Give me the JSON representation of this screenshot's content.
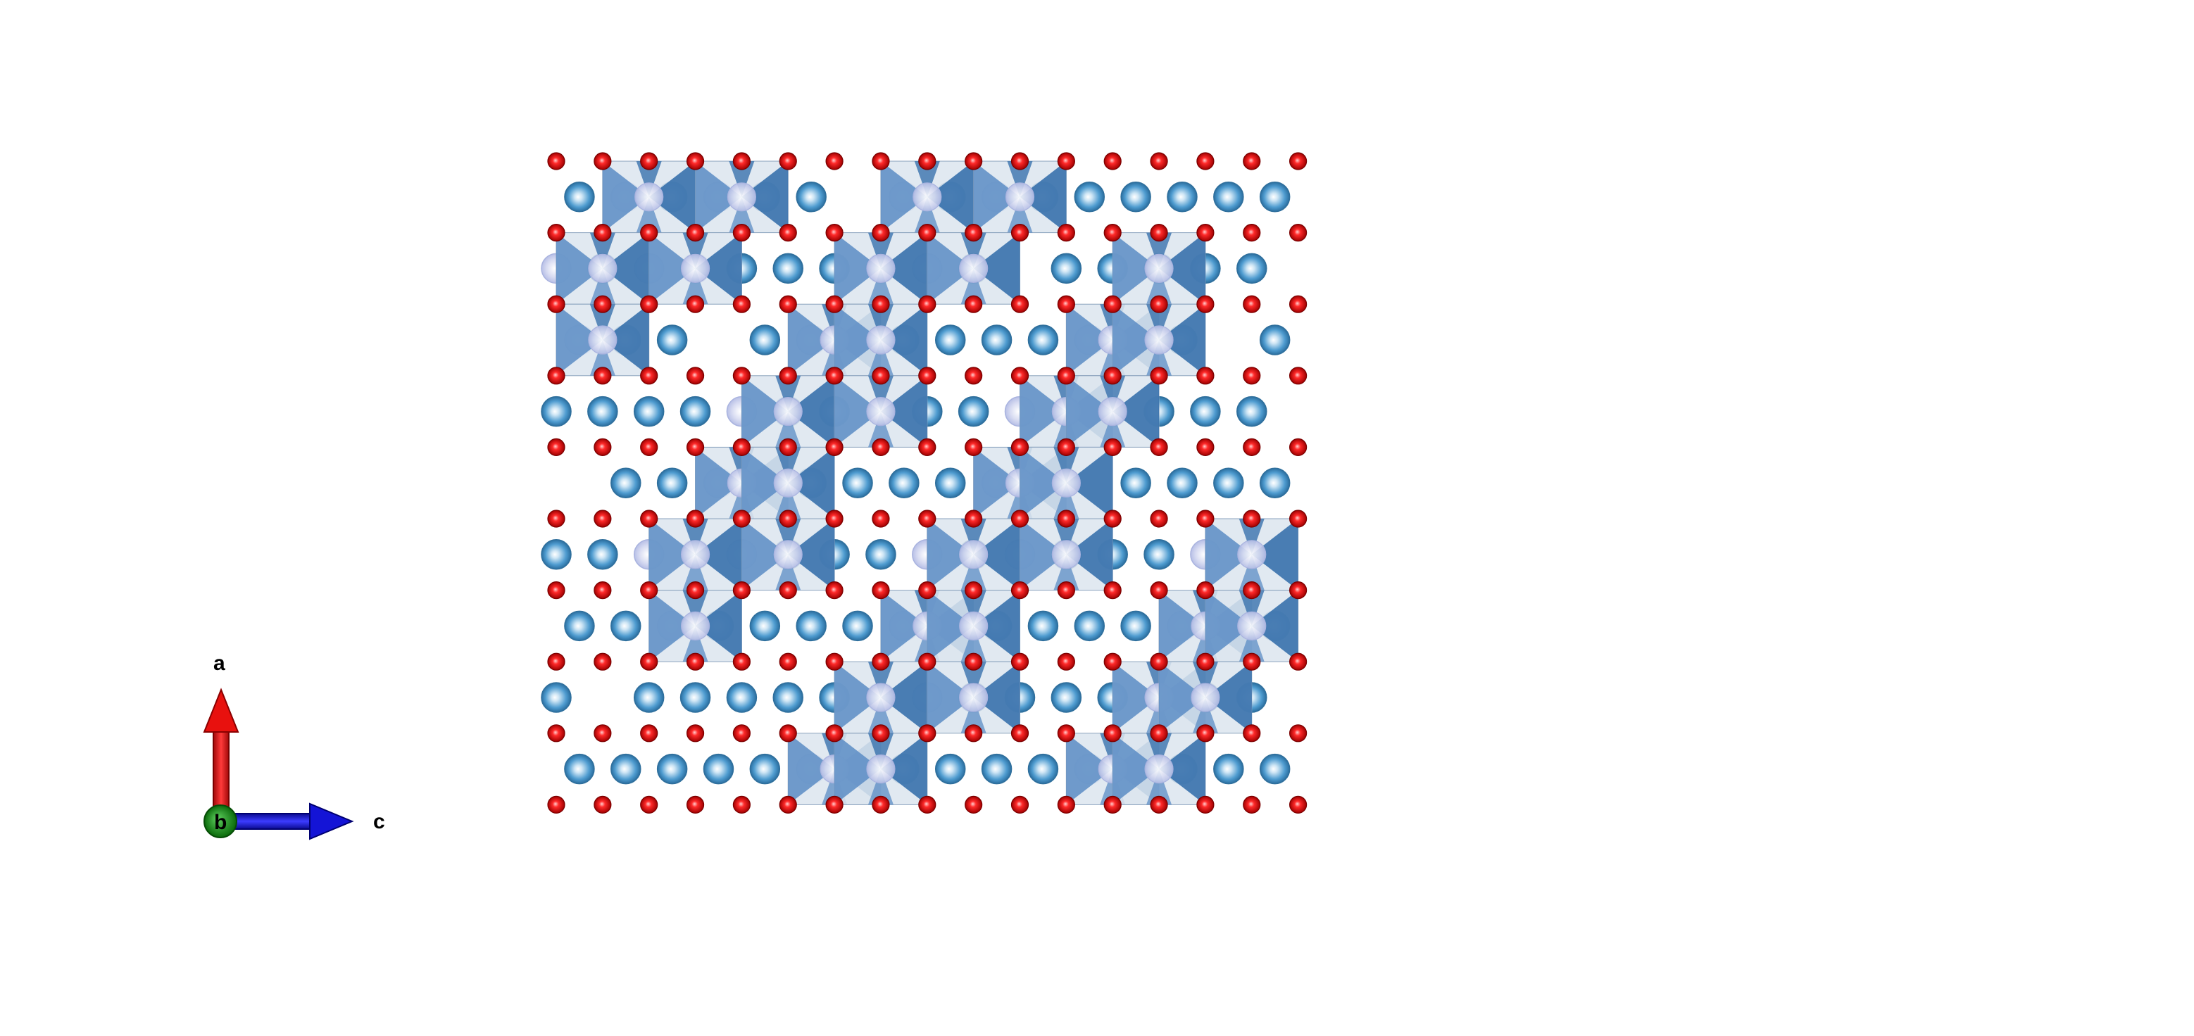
{
  "axes": {
    "a_label": "a",
    "b_label": "b",
    "c_label": "c",
    "a_color": "#e8110e",
    "b_color": "#0f8a0f",
    "c_color": "#1414d6"
  },
  "structure": {
    "grid_columns": 17,
    "grid_rows": 10,
    "oxygen_color": "#e01010",
    "cation_color": "#4f9cd0",
    "polyhedron_light": "#dce5ef",
    "polyhedron_medium": "#5b8cc4",
    "polyhedron_dark": "#2e6aa8",
    "octahedra": [
      {
        "row": 0,
        "col": 1
      },
      {
        "row": 0,
        "col": 3
      },
      {
        "row": 0,
        "col": 7
      },
      {
        "row": 0,
        "col": 9
      },
      {
        "row": 1,
        "col": 0
      },
      {
        "row": 1,
        "col": 2
      },
      {
        "row": 1,
        "col": 6
      },
      {
        "row": 1,
        "col": 8
      },
      {
        "row": 1,
        "col": 12
      },
      {
        "row": 2,
        "col": 0
      },
      {
        "row": 2,
        "col": 5
      },
      {
        "row": 2,
        "col": 6
      },
      {
        "row": 2,
        "col": 11
      },
      {
        "row": 2,
        "col": 12
      },
      {
        "row": 3,
        "col": 4
      },
      {
        "row": 3,
        "col": 6
      },
      {
        "row": 3,
        "col": 10
      },
      {
        "row": 3,
        "col": 11
      },
      {
        "row": 4,
        "col": 3
      },
      {
        "row": 4,
        "col": 4
      },
      {
        "row": 4,
        "col": 9
      },
      {
        "row": 4,
        "col": 10
      },
      {
        "row": 5,
        "col": 2
      },
      {
        "row": 5,
        "col": 4
      },
      {
        "row": 5,
        "col": 8
      },
      {
        "row": 5,
        "col": 10
      },
      {
        "row": 5,
        "col": 14
      },
      {
        "row": 6,
        "col": 2
      },
      {
        "row": 6,
        "col": 7
      },
      {
        "row": 6,
        "col": 8
      },
      {
        "row": 6,
        "col": 13
      },
      {
        "row": 6,
        "col": 14
      },
      {
        "row": 7,
        "col": 6
      },
      {
        "row": 7,
        "col": 8
      },
      {
        "row": 7,
        "col": 12
      },
      {
        "row": 7,
        "col": 13
      },
      {
        "row": 8,
        "col": 5
      },
      {
        "row": 8,
        "col": 6
      },
      {
        "row": 8,
        "col": 11
      },
      {
        "row": 8,
        "col": 12
      }
    ]
  }
}
